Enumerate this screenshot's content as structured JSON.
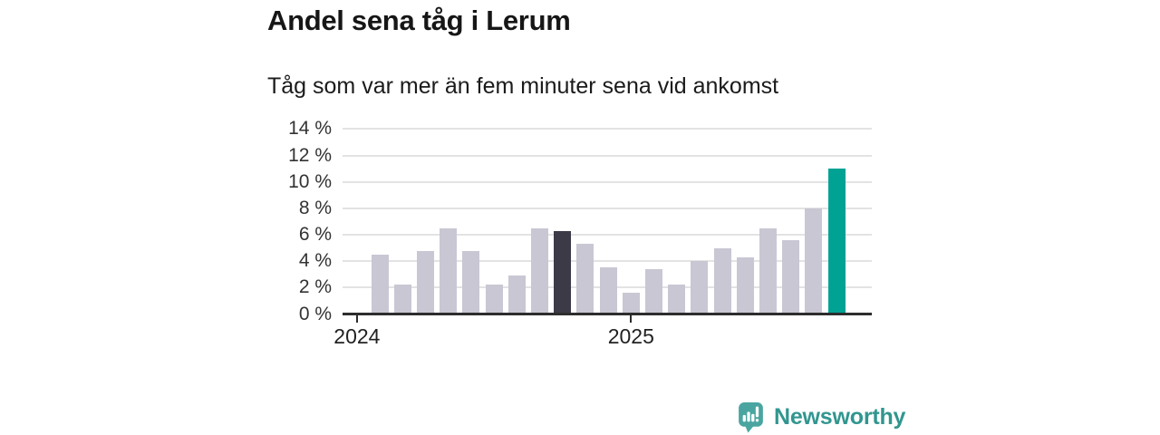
{
  "chart_data": {
    "type": "bar",
    "title": "Andel sena tåg i Lerum",
    "subtitle": "Tåg som var mer än fem minuter sena vid ankomst",
    "unit": "%",
    "categories": [
      "2024-02",
      "2024-03",
      "2024-04",
      "2024-05",
      "2024-06",
      "2024-07",
      "2024-08",
      "2024-09",
      "2024-10",
      "2024-11",
      "2024-12",
      "2025-01",
      "2025-02",
      "2025-03",
      "2025-04",
      "2025-05",
      "2025-06",
      "2025-07",
      "2025-08",
      "2025-09",
      "2025-10"
    ],
    "values": [
      4.5,
      2.2,
      4.8,
      6.5,
      4.8,
      2.2,
      2.9,
      6.5,
      6.3,
      5.3,
      3.5,
      1.6,
      3.4,
      2.2,
      4.0,
      5.0,
      4.3,
      6.5,
      5.6,
      8.0,
      11.0
    ],
    "ylim": [
      0,
      14
    ],
    "grid": true,
    "legend": "none",
    "y_ticks": [
      {
        "value": 0,
        "label": "0 %"
      },
      {
        "value": 2,
        "label": "2 %"
      },
      {
        "value": 4,
        "label": "4 %"
      },
      {
        "value": 6,
        "label": "6 %"
      },
      {
        "value": 8,
        "label": "8 %"
      },
      {
        "value": 10,
        "label": "10 %"
      },
      {
        "value": 12,
        "label": "12 %"
      },
      {
        "value": 14,
        "label": "14 %"
      }
    ],
    "x_ticks": [
      {
        "label": "2024",
        "slot": -1
      },
      {
        "label": "2025",
        "slot": 11
      }
    ],
    "highlight": {
      "dark_index": 8,
      "teal_index": 20
    },
    "colors": {
      "bar_default": "#c9c7d3",
      "bar_dark": "#3d3a48",
      "bar_highlight": "#00a294",
      "axis": "#2d2d2d",
      "grid": "#e3e3e3"
    }
  },
  "footer": {
    "logo_text": "Newsworthy",
    "logo_icon": "newsworthy-speech-bubble-bar-chart-icon",
    "logo_icon_color": "#4aa5a0",
    "logo_text_color": "#31968f"
  }
}
